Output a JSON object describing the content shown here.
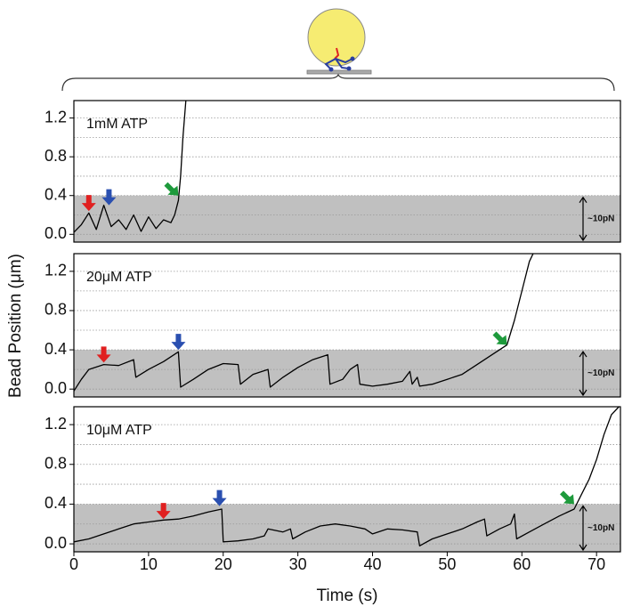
{
  "chart_data": [
    {
      "type": "line",
      "panel_label": "1mM ATP",
      "force_label": "~10pN",
      "shade_below": 0.4,
      "shade_color": "#c0c0c0",
      "xlim": [
        0,
        73.2
      ],
      "ylim": [
        -0.08,
        1.38
      ],
      "yticks": [
        {
          "value": 0,
          "label": "0.0"
        },
        0.4,
        0.8,
        1.2
      ],
      "minor_yticks": [
        0.2,
        0.6,
        1.0
      ],
      "series": [
        {
          "color": "#000000",
          "x": [
            0,
            1,
            2,
            3,
            4,
            5,
            6,
            7,
            8,
            9,
            10,
            11,
            12,
            13,
            13.5,
            14,
            14.3,
            14.6,
            15
          ],
          "values": [
            0.02,
            0.1,
            0.22,
            0.05,
            0.3,
            0.08,
            0.15,
            0.05,
            0.2,
            0.03,
            0.18,
            0.06,
            0.15,
            0.12,
            0.2,
            0.35,
            0.6,
            1.0,
            1.38
          ]
        }
      ],
      "arrows": [
        {
          "x": 2,
          "y": 0.24,
          "color": "#e02020",
          "direction": "down"
        },
        {
          "x": 4.7,
          "y": 0.3,
          "color": "#2a4fb0",
          "direction": "down"
        },
        {
          "x": 14,
          "y": 0.4,
          "color": "#1e9a3c",
          "direction": "down-right"
        }
      ]
    },
    {
      "type": "line",
      "panel_label": "20μM ATP",
      "force_label": "~10pN",
      "shade_below": 0.4,
      "shade_color": "#c0c0c0",
      "ylabel": "Bead Position (μm)",
      "xlim": [
        0,
        73.2
      ],
      "ylim": [
        -0.08,
        1.38
      ],
      "yticks": [
        {
          "value": 0,
          "label": "0.0"
        },
        0.4,
        0.8,
        1.2
      ],
      "minor_yticks": [
        0.2,
        0.6,
        1.0
      ],
      "series": [
        {
          "color": "#000000",
          "x": [
            0,
            1,
            2,
            4,
            6,
            8,
            8.3,
            10,
            12,
            14,
            14.3,
            16,
            18,
            20,
            22,
            22.3,
            24,
            26,
            26.3,
            28,
            30,
            32,
            34,
            34.3,
            36,
            37,
            38,
            38.3,
            40,
            42,
            44,
            45,
            45.3,
            46,
            46.3,
            48,
            50,
            52,
            54,
            56,
            58,
            59,
            60,
            61,
            61.5
          ],
          "values": [
            -0.02,
            0.1,
            0.2,
            0.25,
            0.24,
            0.3,
            0.12,
            0.2,
            0.28,
            0.38,
            0.02,
            0.1,
            0.2,
            0.26,
            0.25,
            0.05,
            0.15,
            0.2,
            0.02,
            0.12,
            0.22,
            0.3,
            0.35,
            0.05,
            0.1,
            0.2,
            0.25,
            0.05,
            0.03,
            0.05,
            0.08,
            0.18,
            0.05,
            0.12,
            0.03,
            0.05,
            0.1,
            0.15,
            0.25,
            0.35,
            0.45,
            0.7,
            1.0,
            1.3,
            1.38
          ]
        }
      ],
      "arrows": [
        {
          "x": 4,
          "y": 0.27,
          "color": "#e02020",
          "direction": "down"
        },
        {
          "x": 14,
          "y": 0.4,
          "color": "#2a4fb0",
          "direction": "down"
        },
        {
          "x": 58,
          "y": 0.45,
          "color": "#1e9a3c",
          "direction": "down-right"
        }
      ]
    },
    {
      "type": "line",
      "panel_label": "10μM ATP",
      "force_label": "~10pN",
      "shade_below": 0.4,
      "shade_color": "#c0c0c0",
      "xlabel": "Time (s)",
      "xlim": [
        0,
        73.2
      ],
      "ylim": [
        -0.08,
        1.38
      ],
      "xticks": [
        0,
        10,
        20,
        30,
        40,
        50,
        60,
        70
      ],
      "yticks": [
        {
          "value": 0,
          "label": "0.0"
        },
        0.4,
        0.8,
        1.2
      ],
      "minor_yticks": [
        0.2,
        0.6,
        1.0
      ],
      "series": [
        {
          "color": "#000000",
          "x": [
            0,
            2,
            4,
            6,
            8,
            10,
            12,
            14,
            16,
            18,
            19.8,
            20,
            22,
            24,
            25.5,
            26,
            28,
            29,
            29.3,
            31,
            33,
            35,
            37,
            39,
            40,
            42,
            44,
            46,
            46.3,
            48,
            50,
            52,
            54,
            55,
            55.3,
            57,
            58.5,
            59,
            59.3,
            61,
            63,
            65,
            67,
            68,
            69,
            70,
            71,
            72,
            73
          ],
          "values": [
            0.02,
            0.05,
            0.1,
            0.15,
            0.2,
            0.22,
            0.24,
            0.25,
            0.28,
            0.32,
            0.35,
            0.02,
            0.03,
            0.05,
            0.08,
            0.15,
            0.12,
            0.15,
            0.05,
            0.12,
            0.18,
            0.2,
            0.18,
            0.15,
            0.1,
            0.15,
            0.14,
            0.12,
            -0.02,
            0.05,
            0.1,
            0.15,
            0.22,
            0.25,
            0.08,
            0.15,
            0.2,
            0.3,
            0.05,
            0.12,
            0.2,
            0.28,
            0.35,
            0.5,
            0.65,
            0.85,
            1.1,
            1.3,
            1.38
          ]
        }
      ],
      "arrows": [
        {
          "x": 12,
          "y": 0.25,
          "color": "#e02020",
          "direction": "down"
        },
        {
          "x": 19.5,
          "y": 0.38,
          "color": "#2a4fb0",
          "direction": "down"
        },
        {
          "x": 67,
          "y": 0.4,
          "color": "#1e9a3c",
          "direction": "down-right"
        }
      ]
    }
  ]
}
